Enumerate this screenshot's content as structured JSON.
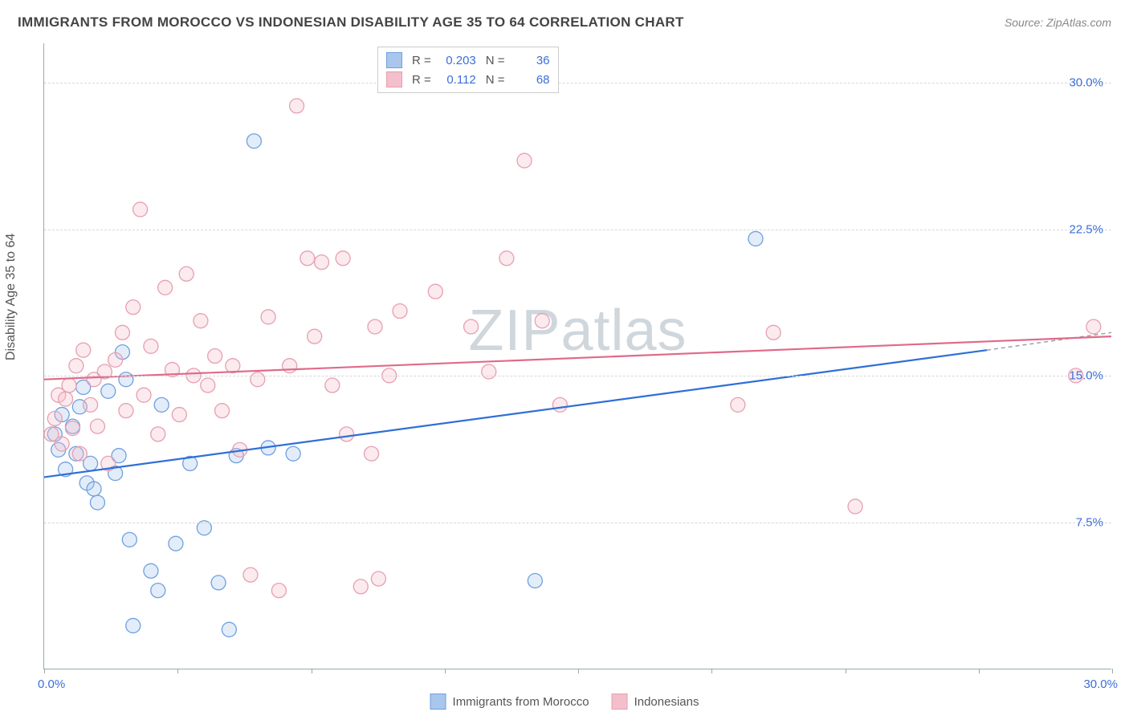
{
  "title": "IMMIGRANTS FROM MOROCCO VS INDONESIAN DISABILITY AGE 35 TO 64 CORRELATION CHART",
  "source_label": "Source: ZipAtlas.com",
  "y_axis_label": "Disability Age 35 to 64",
  "watermark": "ZIPatlas",
  "chart": {
    "type": "scatter",
    "xlim": [
      0,
      30
    ],
    "ylim": [
      0,
      32
    ],
    "x_min_label": "0.0%",
    "x_max_label": "30.0%",
    "y_ticks": [
      7.5,
      15.0,
      22.5,
      30.0
    ],
    "y_tick_labels": [
      "7.5%",
      "15.0%",
      "22.5%",
      "30.0%"
    ],
    "x_tick_positions": [
      0,
      3.75,
      7.5,
      11.25,
      15,
      18.75,
      22.5,
      26.25,
      30
    ],
    "grid_color": "#d8d8d8",
    "axis_color": "#9aa0a6",
    "background_color": "#ffffff",
    "marker_radius": 9,
    "marker_fill_opacity": 0.32,
    "series": [
      {
        "name": "Immigrants from Morocco",
        "color_stroke": "#6fa0e0",
        "color_fill": "#a9c6ec",
        "line_color": "#2f6fd6",
        "R": "0.203",
        "N": "36",
        "trend": {
          "x1": 0,
          "y1": 9.8,
          "x2": 26.5,
          "y2": 16.3
        },
        "trend_dash": {
          "x1": 26.5,
          "y1": 16.3,
          "x2": 30,
          "y2": 17.2
        },
        "points": [
          [
            0.3,
            12.0
          ],
          [
            0.4,
            11.2
          ],
          [
            0.5,
            13.0
          ],
          [
            0.6,
            10.2
          ],
          [
            0.8,
            12.4
          ],
          [
            0.9,
            11.0
          ],
          [
            1.0,
            13.4
          ],
          [
            1.1,
            14.4
          ],
          [
            1.2,
            9.5
          ],
          [
            1.3,
            10.5
          ],
          [
            1.4,
            9.2
          ],
          [
            1.5,
            8.5
          ],
          [
            1.8,
            14.2
          ],
          [
            2.0,
            10.0
          ],
          [
            2.1,
            10.9
          ],
          [
            2.2,
            16.2
          ],
          [
            2.3,
            14.8
          ],
          [
            2.4,
            6.6
          ],
          [
            2.5,
            2.2
          ],
          [
            3.0,
            5.0
          ],
          [
            3.2,
            4.0
          ],
          [
            3.3,
            13.5
          ],
          [
            3.7,
            6.4
          ],
          [
            4.1,
            10.5
          ],
          [
            4.5,
            7.2
          ],
          [
            4.9,
            4.4
          ],
          [
            5.2,
            2.0
          ],
          [
            5.4,
            10.9
          ],
          [
            5.9,
            27.0
          ],
          [
            6.3,
            11.3
          ],
          [
            7.0,
            11.0
          ],
          [
            13.8,
            4.5
          ],
          [
            20.0,
            22.0
          ]
        ]
      },
      {
        "name": "Indonesians",
        "color_stroke": "#e79fb0",
        "color_fill": "#f3bfca",
        "line_color": "#e06a8a",
        "R": "0.112",
        "N": "68",
        "trend": {
          "x1": 0,
          "y1": 14.8,
          "x2": 30,
          "y2": 17.0
        },
        "points": [
          [
            0.2,
            12.0
          ],
          [
            0.3,
            12.8
          ],
          [
            0.4,
            14.0
          ],
          [
            0.5,
            11.5
          ],
          [
            0.6,
            13.8
          ],
          [
            0.7,
            14.5
          ],
          [
            0.8,
            12.3
          ],
          [
            0.9,
            15.5
          ],
          [
            1.0,
            11.0
          ],
          [
            1.1,
            16.3
          ],
          [
            1.3,
            13.5
          ],
          [
            1.4,
            14.8
          ],
          [
            1.5,
            12.4
          ],
          [
            1.7,
            15.2
          ],
          [
            1.8,
            10.5
          ],
          [
            2.0,
            15.8
          ],
          [
            2.2,
            17.2
          ],
          [
            2.3,
            13.2
          ],
          [
            2.5,
            18.5
          ],
          [
            2.7,
            23.5
          ],
          [
            2.8,
            14.0
          ],
          [
            3.0,
            16.5
          ],
          [
            3.2,
            12.0
          ],
          [
            3.4,
            19.5
          ],
          [
            3.6,
            15.3
          ],
          [
            3.8,
            13.0
          ],
          [
            4.0,
            20.2
          ],
          [
            4.2,
            15.0
          ],
          [
            4.4,
            17.8
          ],
          [
            4.6,
            14.5
          ],
          [
            4.8,
            16.0
          ],
          [
            5.0,
            13.2
          ],
          [
            5.3,
            15.5
          ],
          [
            5.5,
            11.2
          ],
          [
            5.8,
            4.8
          ],
          [
            6.0,
            14.8
          ],
          [
            6.3,
            18.0
          ],
          [
            6.6,
            4.0
          ],
          [
            6.9,
            15.5
          ],
          [
            7.1,
            28.8
          ],
          [
            7.4,
            21.0
          ],
          [
            7.6,
            17.0
          ],
          [
            7.8,
            20.8
          ],
          [
            8.1,
            14.5
          ],
          [
            8.4,
            21.0
          ],
          [
            8.5,
            12.0
          ],
          [
            8.9,
            4.2
          ],
          [
            9.2,
            11.0
          ],
          [
            9.3,
            17.5
          ],
          [
            9.4,
            4.6
          ],
          [
            9.7,
            15.0
          ],
          [
            10.0,
            18.3
          ],
          [
            11.0,
            19.3
          ],
          [
            12.0,
            17.5
          ],
          [
            12.5,
            15.2
          ],
          [
            13.0,
            21.0
          ],
          [
            13.5,
            26.0
          ],
          [
            14.0,
            17.8
          ],
          [
            14.5,
            13.5
          ],
          [
            19.5,
            13.5
          ],
          [
            20.5,
            17.2
          ],
          [
            22.8,
            8.3
          ],
          [
            29.0,
            15.0
          ],
          [
            29.5,
            17.5
          ]
        ]
      }
    ]
  },
  "legend_bottom": [
    {
      "label": "Immigrants from Morocco",
      "fill": "#a9c6ec",
      "stroke": "#6fa0e0"
    },
    {
      "label": "Indonesians",
      "fill": "#f3bfca",
      "stroke": "#e79fb0"
    }
  ],
  "legend_top_labels": {
    "R": "R =",
    "N": "N ="
  }
}
